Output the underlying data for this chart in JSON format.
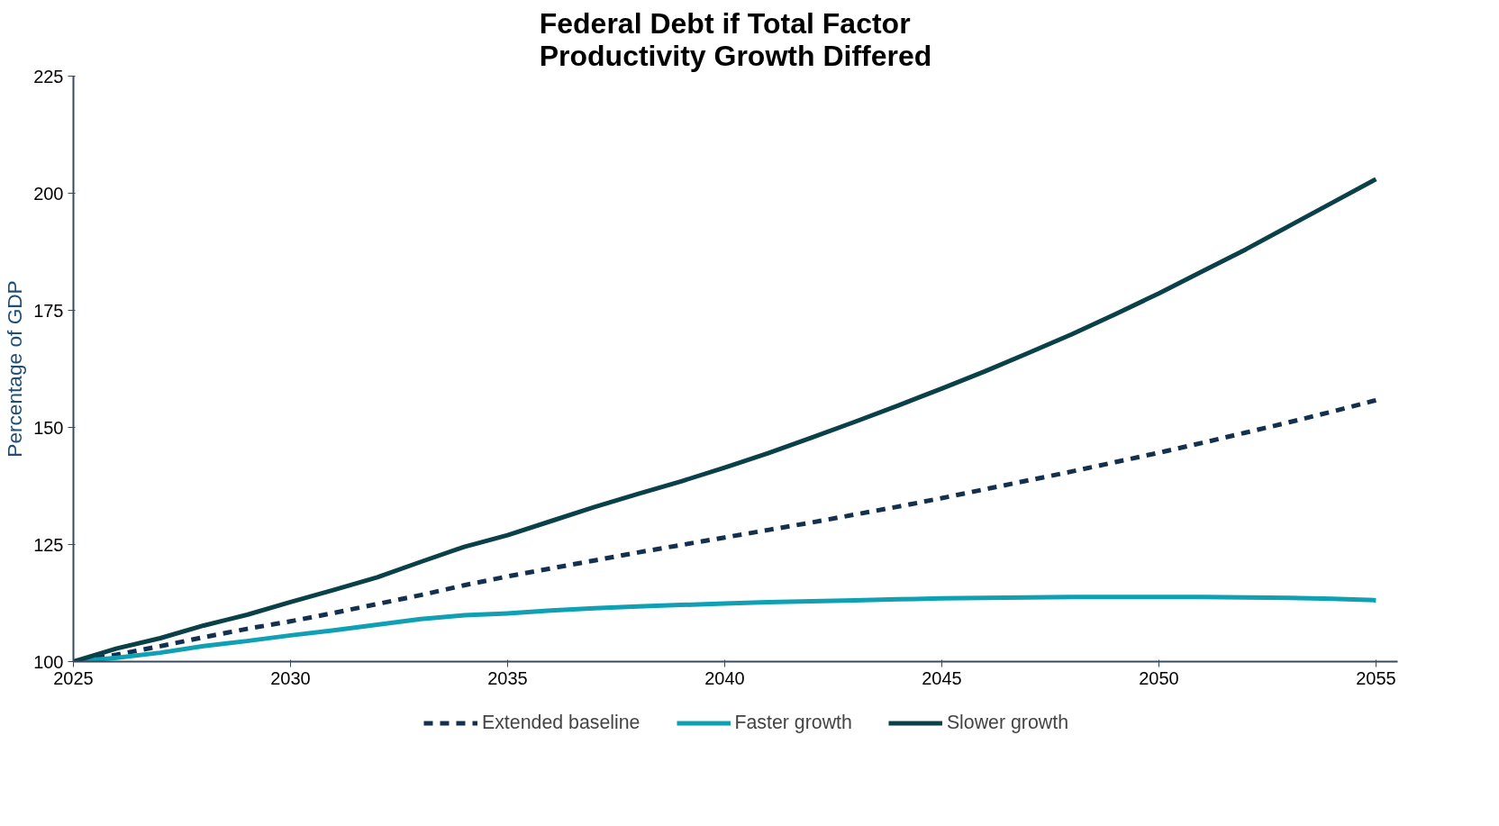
{
  "chart_data": {
    "type": "line",
    "title": "Federal Debt if Total Factor\nProductivity Growth Differed",
    "ylabel": "Percentage of GDP",
    "x": [
      2025,
      2026,
      2027,
      2028,
      2029,
      2030,
      2031,
      2032,
      2033,
      2034,
      2035,
      2036,
      2037,
      2038,
      2039,
      2040,
      2041,
      2042,
      2043,
      2044,
      2045,
      2046,
      2047,
      2048,
      2049,
      2050,
      2051,
      2052,
      2053,
      2054,
      2055
    ],
    "series": [
      {
        "name": "Extended baseline",
        "color": "#14304f",
        "line_style": "dashed",
        "values": [
          100,
          101.5,
          103.3,
          105.2,
          107,
          108.6,
          110.4,
          112.3,
          114.2,
          116.3,
          118.2,
          119.9,
          121.6,
          123.3,
          124.9,
          126.5,
          128.1,
          129.7,
          131.4,
          133.1,
          134.9,
          136.8,
          138.7,
          140.6,
          142.6,
          144.6,
          146.7,
          148.9,
          151.1,
          153.4,
          155.8
        ]
      },
      {
        "name": "Faster growth",
        "color": "#0fa0b4",
        "values": [
          100,
          100.8,
          101.9,
          103.3,
          104.4,
          105.6,
          106.7,
          107.9,
          109.1,
          109.9,
          110.3,
          110.9,
          111.4,
          111.8,
          112.1,
          112.4,
          112.7,
          112.9,
          113.1,
          113.3,
          113.5,
          113.6,
          113.7,
          113.8,
          113.8,
          113.8,
          113.8,
          113.7,
          113.6,
          113.4,
          113.1
        ]
      },
      {
        "name": "Slower growth",
        "color": "#0a4048",
        "values": [
          100,
          102.8,
          105,
          107.7,
          110,
          112.7,
          115.3,
          118,
          121.3,
          124.5,
          127,
          130,
          133,
          135.8,
          138.5,
          141.4,
          144.5,
          147.8,
          151.2,
          154.7,
          158.3,
          162,
          165.9,
          169.9,
          174.2,
          178.6,
          183.3,
          188,
          193,
          198,
          203
        ]
      }
    ],
    "xlim": [
      2025,
      2055.5
    ],
    "xticks": [
      2025,
      2030,
      2035,
      2040,
      2045,
      2050,
      2055
    ],
    "ylim": [
      100,
      225
    ],
    "yticks": [
      100,
      125,
      150,
      175,
      200,
      225
    ],
    "grid": false,
    "legend": "bottom"
  }
}
